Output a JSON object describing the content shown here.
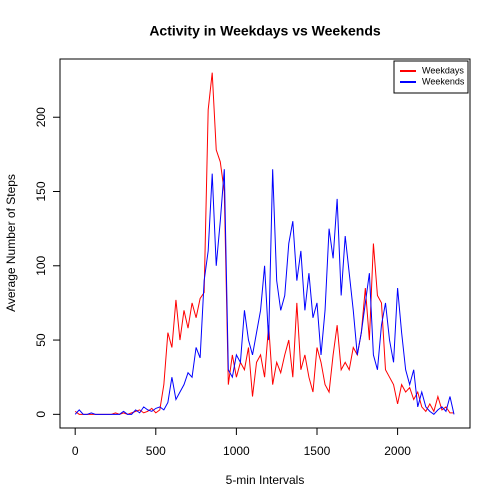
{
  "chart_data": {
    "type": "line",
    "title": "Activity in Weekdays vs Weekends",
    "xlabel": "5-min Intervals",
    "ylabel": "Average Number of Steps",
    "x": [
      0,
      25,
      50,
      75,
      100,
      125,
      150,
      175,
      200,
      225,
      250,
      275,
      300,
      325,
      350,
      375,
      400,
      425,
      450,
      475,
      500,
      525,
      550,
      575,
      600,
      625,
      650,
      675,
      700,
      725,
      750,
      775,
      800,
      825,
      850,
      875,
      900,
      925,
      950,
      975,
      1000,
      1025,
      1050,
      1075,
      1100,
      1125,
      1150,
      1175,
      1200,
      1225,
      1250,
      1275,
      1300,
      1325,
      1350,
      1375,
      1400,
      1425,
      1450,
      1475,
      1500,
      1525,
      1550,
      1575,
      1600,
      1625,
      1650,
      1675,
      1700,
      1725,
      1750,
      1775,
      1800,
      1825,
      1850,
      1875,
      1900,
      1925,
      1950,
      1975,
      2000,
      2025,
      2050,
      2075,
      2100,
      2125,
      2150,
      2175,
      2200,
      2225,
      2250,
      2275,
      2300,
      2325,
      2350
    ],
    "series": [
      {
        "name": "Weekdays",
        "color": "#ff0000",
        "values": [
          2,
          0,
          0,
          0,
          0,
          0,
          0,
          0,
          0,
          0,
          1,
          0,
          1,
          0,
          1,
          2,
          3,
          1,
          2,
          4,
          1,
          3,
          20,
          55,
          45,
          77,
          50,
          70,
          58,
          75,
          65,
          78,
          82,
          205,
          230,
          178,
          170,
          150,
          20,
          40,
          25,
          35,
          30,
          45,
          12,
          35,
          40,
          25,
          60,
          20,
          35,
          28,
          40,
          50,
          25,
          75,
          30,
          40,
          25,
          15,
          45,
          35,
          20,
          15,
          40,
          60,
          30,
          35,
          30,
          45,
          40,
          55,
          85,
          50,
          115,
          80,
          75,
          30,
          25,
          20,
          7,
          20,
          15,
          18,
          10,
          15,
          5,
          2,
          7,
          2,
          12,
          3,
          5,
          1,
          1
        ]
      },
      {
        "name": "Weekends",
        "color": "#0000ff",
        "values": [
          0,
          3,
          0,
          0,
          1,
          0,
          0,
          0,
          0,
          0,
          0,
          0,
          2,
          0,
          0,
          3,
          1,
          5,
          3,
          2,
          4,
          5,
          3,
          8,
          25,
          10,
          15,
          20,
          28,
          25,
          45,
          38,
          90,
          110,
          162,
          100,
          130,
          165,
          30,
          25,
          40,
          35,
          70,
          50,
          40,
          55,
          70,
          100,
          50,
          165,
          90,
          70,
          80,
          115,
          130,
          90,
          110,
          70,
          95,
          65,
          75,
          40,
          70,
          125,
          105,
          145,
          80,
          120,
          95,
          70,
          40,
          55,
          75,
          95,
          40,
          30,
          60,
          75,
          50,
          35,
          85,
          55,
          30,
          20,
          30,
          5,
          15,
          5,
          2,
          0,
          3,
          5,
          2,
          12,
          0
        ]
      }
    ],
    "xlim": [
      -94.2,
      2449.2
    ],
    "xticks": [
      0,
      500,
      1000,
      1500,
      2000
    ],
    "ylim": [
      -9.2,
      239.2
    ],
    "yticks": [
      0,
      50,
      100,
      150,
      200
    ],
    "legend": "topright"
  }
}
